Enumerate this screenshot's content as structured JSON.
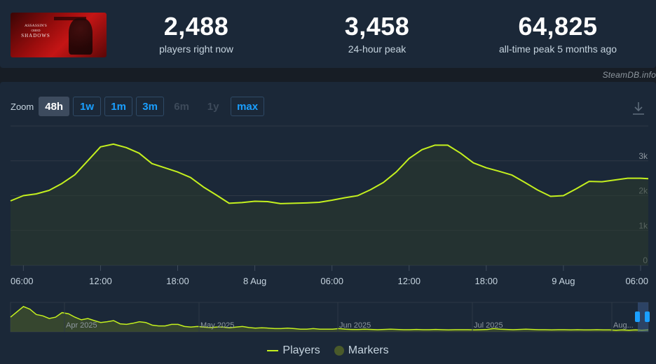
{
  "game": {
    "logo_line1": "ASSASSIN'S",
    "logo_line2": "CREED",
    "logo_line3": "SHADOWS"
  },
  "stats": [
    {
      "value": "2,488",
      "label": "players right now"
    },
    {
      "value": "3,458",
      "label": "24-hour peak"
    },
    {
      "value": "64,825",
      "label": "all-time peak 5 months ago"
    }
  ],
  "credit": "SteamDB.info",
  "zoom": {
    "label": "Zoom",
    "buttons": [
      {
        "label": "48h",
        "state": "active"
      },
      {
        "label": "1w",
        "state": "enabled"
      },
      {
        "label": "1m",
        "state": "enabled"
      },
      {
        "label": "3m",
        "state": "enabled"
      },
      {
        "label": "6m",
        "state": "disabled"
      },
      {
        "label": "1y",
        "state": "disabled"
      },
      {
        "label": "max",
        "state": "enabled"
      }
    ]
  },
  "colors": {
    "line": "#c4f01e",
    "area": "#2c3a2c",
    "grid": "#2e3946",
    "background": "#1b2838",
    "accent": "#1a9fff"
  },
  "legend": {
    "players": "Players",
    "markers": "Markers"
  },
  "chart_data": {
    "type": "line",
    "y_unit": "players",
    "y_ticks": [
      0,
      1000,
      2000,
      3000
    ],
    "y_tick_labels": [
      "0",
      "1k",
      "2k",
      "3k"
    ],
    "ylim": [
      0,
      4000
    ],
    "x_ticks": [
      "06:00",
      "12:00",
      "18:00",
      "8 Aug",
      "06:00",
      "12:00",
      "18:00",
      "9 Aug",
      "06:00"
    ],
    "x_tick_hours": [
      0,
      6,
      12,
      18,
      24,
      30,
      36,
      42,
      48
    ],
    "xlim_hours": [
      -1,
      48.6
    ],
    "series": [
      {
        "name": "Players",
        "x_hours": [
          -1,
          0,
          1,
          2,
          3,
          4,
          5,
          6,
          7,
          8,
          9,
          10,
          11,
          12,
          13,
          14,
          15,
          16,
          17,
          18,
          19,
          20,
          21,
          22,
          23,
          24,
          25,
          26,
          27,
          28,
          29,
          30,
          31,
          32,
          33,
          34,
          35,
          36,
          37,
          38,
          39,
          40,
          41,
          42,
          43,
          44,
          45,
          46,
          47,
          48,
          48.6
        ],
        "values": [
          1850,
          2000,
          2050,
          2150,
          2350,
          2600,
          3000,
          3400,
          3480,
          3380,
          3220,
          2920,
          2800,
          2680,
          2520,
          2250,
          2020,
          1780,
          1800,
          1840,
          1830,
          1770,
          1780,
          1790,
          1810,
          1870,
          1940,
          2000,
          2170,
          2380,
          2680,
          3070,
          3320,
          3450,
          3450,
          3220,
          2940,
          2800,
          2700,
          2590,
          2380,
          2160,
          1980,
          2000,
          2200,
          2410,
          2400,
          2450,
          2500,
          2500,
          2488
        ]
      }
    ],
    "navigator": {
      "x_labels": [
        "Apr 2025",
        "May 2025",
        "Jun 2025",
        "Jul 2025",
        "Aug..."
      ],
      "values": [
        0.55,
        0.75,
        0.95,
        0.85,
        0.65,
        0.6,
        0.5,
        0.55,
        0.72,
        0.68,
        0.55,
        0.45,
        0.5,
        0.42,
        0.35,
        0.38,
        0.42,
        0.3,
        0.28,
        0.32,
        0.38,
        0.35,
        0.25,
        0.22,
        0.22,
        0.28,
        0.28,
        0.2,
        0.18,
        0.2,
        0.18,
        0.16,
        0.18,
        0.18,
        0.15,
        0.18,
        0.2,
        0.16,
        0.14,
        0.15,
        0.14,
        0.12,
        0.12,
        0.14,
        0.12,
        0.1,
        0.1,
        0.12,
        0.1,
        0.1,
        0.1,
        0.12,
        0.1,
        0.09,
        0.09,
        0.1,
        0.09,
        0.08,
        0.09,
        0.1,
        0.09,
        0.08,
        0.08,
        0.09,
        0.08,
        0.08,
        0.09,
        0.08,
        0.07,
        0.08,
        0.08,
        0.08,
        0.07,
        0.08,
        0.09,
        0.12,
        0.1,
        0.09,
        0.08,
        0.09,
        0.1,
        0.09,
        0.08,
        0.08,
        0.07,
        0.08,
        0.08,
        0.07,
        0.08,
        0.07,
        0.07,
        0.08,
        0.07,
        0.07,
        0.06,
        0.07,
        0.06,
        0.07,
        0.06,
        0.07
      ]
    }
  }
}
